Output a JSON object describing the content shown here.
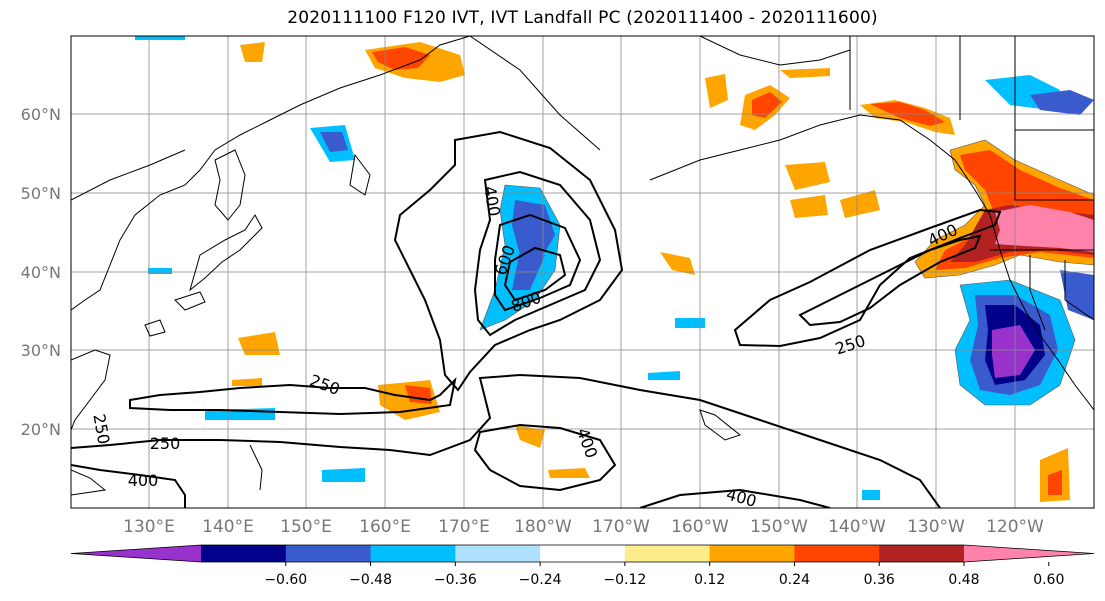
{
  "title": "2020111100 F120 IVT, IVT Landfall PC (2020111400 - 2020111600)",
  "map": {
    "lat_labels": [
      "60°N",
      "50°N",
      "40°N",
      "30°N",
      "20°N"
    ],
    "lon_labels": [
      "130°E",
      "140°E",
      "150°E",
      "160°E",
      "170°E",
      "180°W",
      "170°W",
      "160°W",
      "150°W",
      "140°W",
      "130°W",
      "120°W"
    ]
  },
  "contours": {
    "labels": [
      "400",
      "600",
      "800",
      "400",
      "250",
      "250",
      "250",
      "250",
      "400",
      "400",
      "400"
    ]
  },
  "colorbar": {
    "ticks": [
      "−0.60",
      "−0.48",
      "−0.36",
      "−0.24",
      "−0.12",
      "0.12",
      "0.24",
      "0.36",
      "0.48",
      "0.60"
    ],
    "colors": [
      "#9932cc",
      "#00008b",
      "#3a5bcd",
      "#00bfff",
      "#b0e2ff",
      "#ffffff",
      "#ffec8b",
      "#ffa500",
      "#ff4500",
      "#b22222",
      "#ff82ab"
    ]
  }
}
